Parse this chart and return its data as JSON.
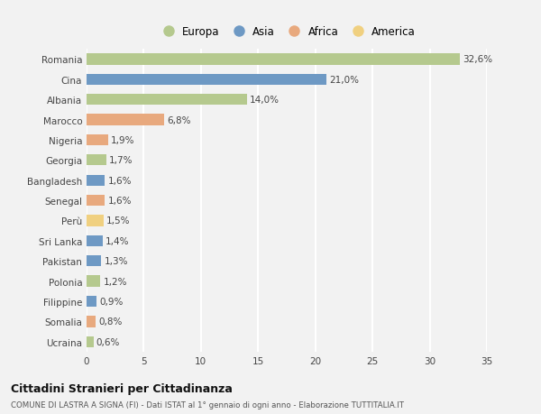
{
  "countries": [
    "Romania",
    "Cina",
    "Albania",
    "Marocco",
    "Nigeria",
    "Georgia",
    "Bangladesh",
    "Senegal",
    "Perù",
    "Sri Lanka",
    "Pakistan",
    "Polonia",
    "Filippine",
    "Somalia",
    "Ucraina"
  ],
  "values": [
    32.6,
    21.0,
    14.0,
    6.8,
    1.9,
    1.7,
    1.6,
    1.6,
    1.5,
    1.4,
    1.3,
    1.2,
    0.9,
    0.8,
    0.6
  ],
  "labels": [
    "32,6%",
    "21,0%",
    "14,0%",
    "6,8%",
    "1,9%",
    "1,7%",
    "1,6%",
    "1,6%",
    "1,5%",
    "1,4%",
    "1,3%",
    "1,2%",
    "0,9%",
    "0,8%",
    "0,6%"
  ],
  "categories": [
    "Europa",
    "Asia",
    "Africa",
    "America"
  ],
  "continent": [
    "Europa",
    "Asia",
    "Europa",
    "Africa",
    "Africa",
    "Europa",
    "Asia",
    "Africa",
    "America",
    "Asia",
    "Asia",
    "Europa",
    "Asia",
    "Africa",
    "Europa"
  ],
  "colors": {
    "Europa": "#b5c98e",
    "Asia": "#6e99c4",
    "Africa": "#e8a97e",
    "America": "#f0d080"
  },
  "legend_colors": [
    "#b5c98e",
    "#6e99c4",
    "#e8a97e",
    "#f0d080"
  ],
  "bg_color": "#f2f2f2",
  "title": "Cittadini Stranieri per Cittadinanza",
  "subtitle": "COMUNE DI LASTRA A SIGNA (FI) - Dati ISTAT al 1° gennaio di ogni anno - Elaborazione TUTTITALIA.IT",
  "xlim": [
    0,
    35
  ],
  "xticks": [
    0,
    5,
    10,
    15,
    20,
    25,
    30,
    35
  ],
  "bar_height": 0.55,
  "label_fontsize": 7.5,
  "tick_fontsize": 7.5,
  "legend_fontsize": 8.5
}
